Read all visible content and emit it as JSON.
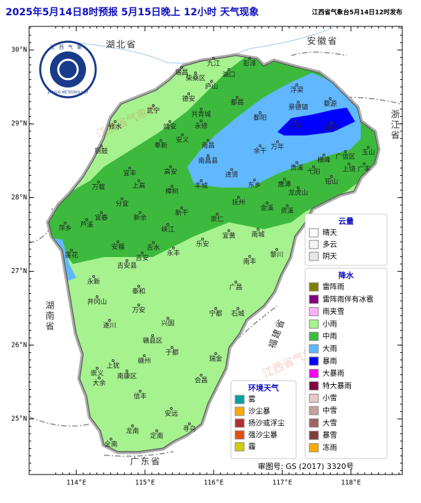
{
  "header": {
    "title": "2025年5月14日8时预报 5月15日晚上 12小时  天气现象",
    "issuer": "江西省气象台5月14日12时发布"
  },
  "logo": {
    "name": "江西气象",
    "english": "JIANGXI METEOROLOGY"
  },
  "map": {
    "lon_ticks": [
      {
        "value": 114,
        "label": "114°E"
      },
      {
        "value": 115,
        "label": "115°E"
      },
      {
        "value": 116,
        "label": "116°E"
      },
      {
        "value": 117,
        "label": "117°E"
      },
      {
        "value": 118,
        "label": "118°E"
      }
    ],
    "lat_ticks": [
      {
        "value": 30,
        "label": "30°N"
      },
      {
        "value": 29,
        "label": "29°N"
      },
      {
        "value": 28,
        "label": "28°N"
      },
      {
        "value": 27,
        "label": "27°N"
      },
      {
        "value": 26,
        "label": "26°N"
      },
      {
        "value": 25,
        "label": "25°N"
      }
    ],
    "provinces": [
      "湖北省",
      "安徽省",
      "浙江省",
      "湖南省",
      "福建省",
      "广东省"
    ],
    "watermarks": [
      "江西省气象台",
      "江西省气象台"
    ],
    "approval": "审图号: GS (2017) 3320号",
    "cities": [
      "九江",
      "湖口",
      "彭泽",
      "瑞昌",
      "柴桑区",
      "德安",
      "庐山",
      "都昌",
      "武宁",
      "共青城",
      "永修",
      "修水",
      "鄱阳",
      "景德镇",
      "浮梁",
      "婺源",
      "德兴",
      "乐平",
      "安义",
      "靖安",
      "奉新",
      "南昌",
      "余干",
      "万年",
      "铜鼓",
      "宜丰",
      "高安",
      "南昌县",
      "进贤",
      "东乡",
      "鹰潭",
      "贵溪",
      "弋阳",
      "横峰",
      "广信区",
      "上饶",
      "玉山",
      "广丰",
      "铅山",
      "万载",
      "上高",
      "樟树",
      "丰城",
      "抚州",
      "金溪",
      "龙虎山",
      "资溪",
      "分宜",
      "宜春",
      "新余",
      "新干",
      "崇仁",
      "萍乡",
      "芦溪",
      "峡江",
      "宜黄",
      "南城",
      "安福",
      "吉水",
      "乐安",
      "黎川",
      "莲花",
      "吉安",
      "永丰",
      "吉安县",
      "南丰",
      "永新",
      "泰和",
      "井冈山",
      "万安",
      "广昌",
      "宁都",
      "石城",
      "遂川",
      "兴国",
      "赣县区",
      "赣州",
      "于都",
      "瑞金",
      "上犹",
      "南康区",
      "崇义",
      "大余",
      "会昌",
      "信丰",
      "安远",
      "寻乌",
      "龙南",
      "全南",
      "定南"
    ]
  },
  "legends": {
    "cloud": {
      "title": "云量",
      "items": [
        {
          "label": "晴天",
          "color": "#ffffff"
        },
        {
          "label": "多云",
          "color": "#f4f4f4"
        },
        {
          "label": "阴天",
          "color": "#e8e8e8"
        }
      ]
    },
    "precipitation": {
      "title": "降水",
      "items": [
        {
          "label": "雷阵雨",
          "color": "#808000"
        },
        {
          "label": "雷阵雨伴有冰雹",
          "color": "#800080"
        },
        {
          "label": "雨夹雪",
          "color": "#ffb0ff"
        },
        {
          "label": "小雨",
          "color": "#a6f28f"
        },
        {
          "label": "中雨",
          "color": "#3dba3d"
        },
        {
          "label": "大雨",
          "color": "#61b8ff"
        },
        {
          "label": "暴雨",
          "color": "#0000fe"
        },
        {
          "label": "大暴雨",
          "color": "#fa00fa"
        },
        {
          "label": "特大暴雨",
          "color": "#800040"
        },
        {
          "label": "小雪",
          "color": "#e6c8c8"
        },
        {
          "label": "中雪",
          "color": "#c8a0a0"
        },
        {
          "label": "大雪",
          "color": "#a06464"
        },
        {
          "label": "暴雪",
          "color": "#803c3c"
        },
        {
          "label": "冻雨",
          "color": "#ffaa00"
        }
      ]
    },
    "environment": {
      "title": "环境天气",
      "items": [
        {
          "label": "雾",
          "color": "#00a0a0"
        },
        {
          "label": "沙尘暴",
          "color": "#ffaa00"
        },
        {
          "label": "扬沙或浮尘",
          "color": "#b03030"
        },
        {
          "label": "强沙尘暴",
          "color": "#e05010"
        },
        {
          "label": "霾",
          "color": "#d0d000"
        }
      ]
    }
  }
}
